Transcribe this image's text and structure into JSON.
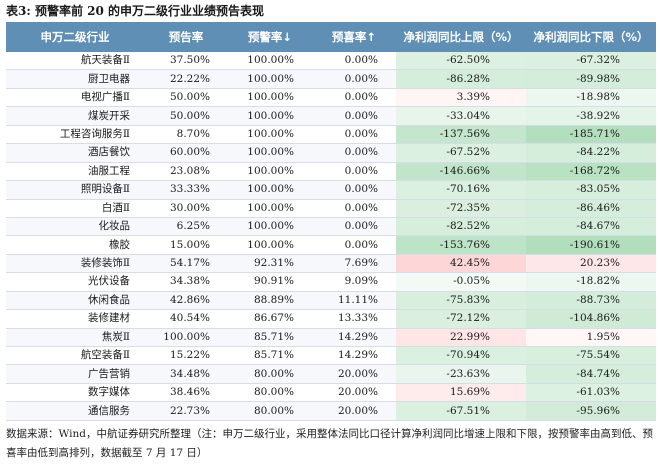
{
  "title": "表3: 预警率前 20 的申万二级行业业绩预告表现",
  "headers": [
    "申万二级行业",
    "预告率",
    "预警率↓",
    "预喜率↑",
    "净利润同比上限（%）",
    "净利润同比下限（%）"
  ],
  "rows": [
    {
      "name": "航天装备Ⅱ",
      "forecast": "37.50%",
      "warning": "100.00%",
      "positive": "0.00%",
      "upper": "-62.50%",
      "lower": "-67.32%",
      "upper_val": -62.5,
      "lower_val": -67.32
    },
    {
      "name": "厨卫电器",
      "forecast": "22.22%",
      "warning": "100.00%",
      "positive": "0.00%",
      "upper": "-86.28%",
      "lower": "-89.98%",
      "upper_val": -86.28,
      "lower_val": -89.98
    },
    {
      "name": "电视广播Ⅱ",
      "forecast": "50.00%",
      "warning": "100.00%",
      "positive": "0.00%",
      "upper": "3.39%",
      "lower": "-18.98%",
      "upper_val": 3.39,
      "lower_val": -18.98
    },
    {
      "name": "煤炭开采",
      "forecast": "50.00%",
      "warning": "100.00%",
      "positive": "0.00%",
      "upper": "-33.04%",
      "lower": "-38.92%",
      "upper_val": -33.04,
      "lower_val": -38.92
    },
    {
      "name": "工程咨询服务Ⅱ",
      "forecast": "8.70%",
      "warning": "100.00%",
      "positive": "0.00%",
      "upper": "-137.56%",
      "lower": "-185.71%",
      "upper_val": -137.56,
      "lower_val": -185.71
    },
    {
      "name": "酒店餐饮",
      "forecast": "60.00%",
      "warning": "100.00%",
      "positive": "0.00%",
      "upper": "-67.52%",
      "lower": "-84.22%",
      "upper_val": -67.52,
      "lower_val": -84.22
    },
    {
      "name": "油服工程",
      "forecast": "23.08%",
      "warning": "100.00%",
      "positive": "0.00%",
      "upper": "-146.66%",
      "lower": "-168.72%",
      "upper_val": -146.66,
      "lower_val": -168.72
    },
    {
      "name": "照明设备Ⅱ",
      "forecast": "33.33%",
      "warning": "100.00%",
      "positive": "0.00%",
      "upper": "-70.16%",
      "lower": "-83.05%",
      "upper_val": -70.16,
      "lower_val": -83.05
    },
    {
      "name": "白酒Ⅱ",
      "forecast": "30.00%",
      "warning": "100.00%",
      "positive": "0.00%",
      "upper": "-72.35%",
      "lower": "-86.46%",
      "upper_val": -72.35,
      "lower_val": -86.46
    },
    {
      "name": "化妆品",
      "forecast": "6.25%",
      "warning": "100.00%",
      "positive": "0.00%",
      "upper": "-82.52%",
      "lower": "-84.67%",
      "upper_val": -82.52,
      "lower_val": -84.67
    },
    {
      "name": "橡胶",
      "forecast": "15.00%",
      "warning": "100.00%",
      "positive": "0.00%",
      "upper": "-153.76%",
      "lower": "-190.61%",
      "upper_val": -153.76,
      "lower_val": -190.61
    },
    {
      "name": "装修装饰Ⅱ",
      "forecast": "54.17%",
      "warning": "92.31%",
      "positive": "7.69%",
      "upper": "42.45%",
      "lower": "20.23%",
      "upper_val": 42.45,
      "lower_val": 20.23
    },
    {
      "name": "光伏设备",
      "forecast": "34.38%",
      "warning": "90.91%",
      "positive": "9.09%",
      "upper": "-0.05%",
      "lower": "-18.82%",
      "upper_val": -0.05,
      "lower_val": -18.82
    },
    {
      "name": "休闲食品",
      "forecast": "42.86%",
      "warning": "88.89%",
      "positive": "11.11%",
      "upper": "-75.83%",
      "lower": "-88.73%",
      "upper_val": -75.83,
      "lower_val": -88.73
    },
    {
      "name": "装修建材",
      "forecast": "40.54%",
      "warning": "86.67%",
      "positive": "13.33%",
      "upper": "-72.12%",
      "lower": "-104.86%",
      "upper_val": -72.12,
      "lower_val": -104.86
    },
    {
      "name": "焦炭Ⅱ",
      "forecast": "100.00%",
      "warning": "85.71%",
      "positive": "14.29%",
      "upper": "22.99%",
      "lower": "1.95%",
      "upper_val": 22.99,
      "lower_val": 1.95
    },
    {
      "name": "航空装备Ⅱ",
      "forecast": "15.22%",
      "warning": "85.71%",
      "positive": "14.29%",
      "upper": "-70.94%",
      "lower": "-75.54%",
      "upper_val": -70.94,
      "lower_val": -75.54
    },
    {
      "name": "广告营销",
      "forecast": "34.48%",
      "warning": "80.00%",
      "positive": "20.00%",
      "upper": "-23.63%",
      "lower": "-84.74%",
      "upper_val": -23.63,
      "lower_val": -84.74
    },
    {
      "name": "数字媒体",
      "forecast": "38.46%",
      "warning": "80.00%",
      "positive": "20.00%",
      "upper": "15.69%",
      "lower": "-61.03%",
      "upper_val": 15.69,
      "lower_val": -61.03
    },
    {
      "name": "通信服务",
      "forecast": "22.73%",
      "warning": "80.00%",
      "positive": "20.00%",
      "upper": "-67.51%",
      "lower": "-95.96%",
      "upper_val": -67.51,
      "lower_val": -95.96
    }
  ],
  "footer": "数据来源：Wind，中航证券研究所整理（注：申万二级行业，采用整体法同比口径计算净利润同比增速上限和下限，按预警率由高到低、预喜率由低到高排列，数据截至 7 月 17 日）",
  "colors": {
    "header_bg": "#5f8fb5",
    "negative": "#63be7b",
    "positive": "#f8696b"
  }
}
